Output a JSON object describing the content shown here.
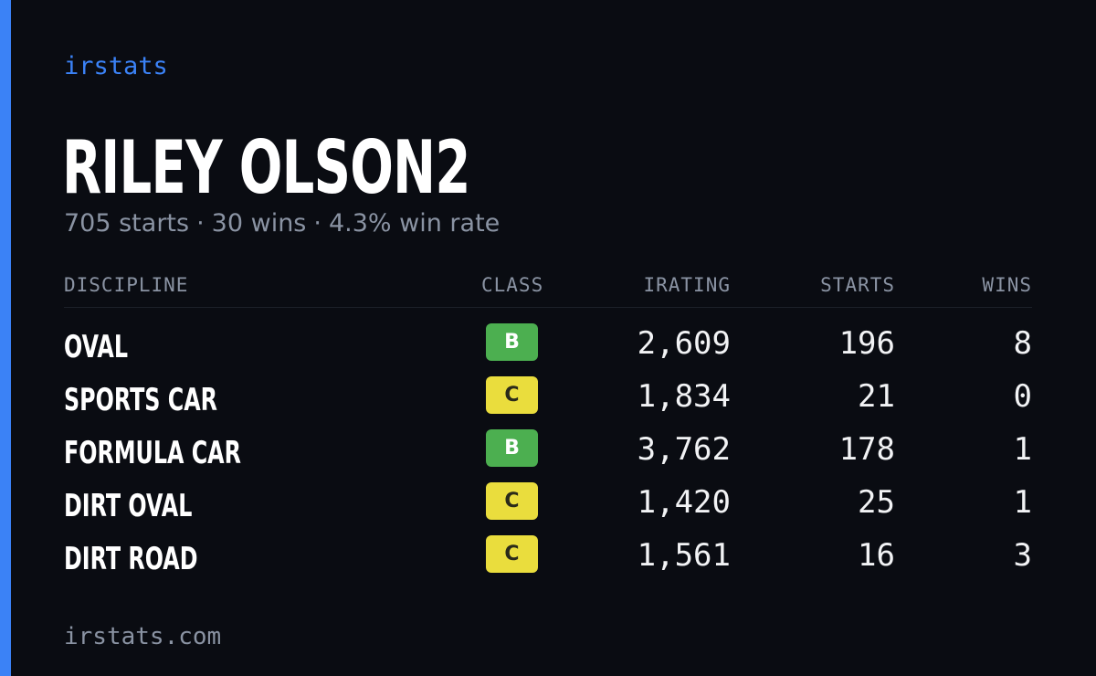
{
  "brand": "irstats",
  "driver": {
    "name": "RILEY OLSON2",
    "starts_text": "705 starts",
    "wins_text": "30 wins",
    "win_rate_text": "4.3% win rate",
    "separator": "·"
  },
  "table": {
    "headers": {
      "discipline": "DISCIPLINE",
      "class": "CLASS",
      "irating": "IRATING",
      "starts": "STARTS",
      "wins": "WINS"
    },
    "rows": [
      {
        "discipline": "OVAL",
        "class": "B",
        "irating": "2,609",
        "starts": "196",
        "wins": "8"
      },
      {
        "discipline": "SPORTS CAR",
        "class": "C",
        "irating": "1,834",
        "starts": "21",
        "wins": "0"
      },
      {
        "discipline": "FORMULA CAR",
        "class": "B",
        "irating": "3,762",
        "starts": "178",
        "wins": "1"
      },
      {
        "discipline": "DIRT OVAL",
        "class": "C",
        "irating": "1,420",
        "starts": "25",
        "wins": "1"
      },
      {
        "discipline": "DIRT ROAD",
        "class": "C",
        "irating": "1,561",
        "starts": "16",
        "wins": "3"
      }
    ]
  },
  "class_colors": {
    "B": "#4caf50",
    "C": "#eadd3d"
  },
  "footer": "irstats.com",
  "colors": {
    "accent": "#3b82f6",
    "background": "#0a0c12",
    "muted": "#8a93a3"
  }
}
